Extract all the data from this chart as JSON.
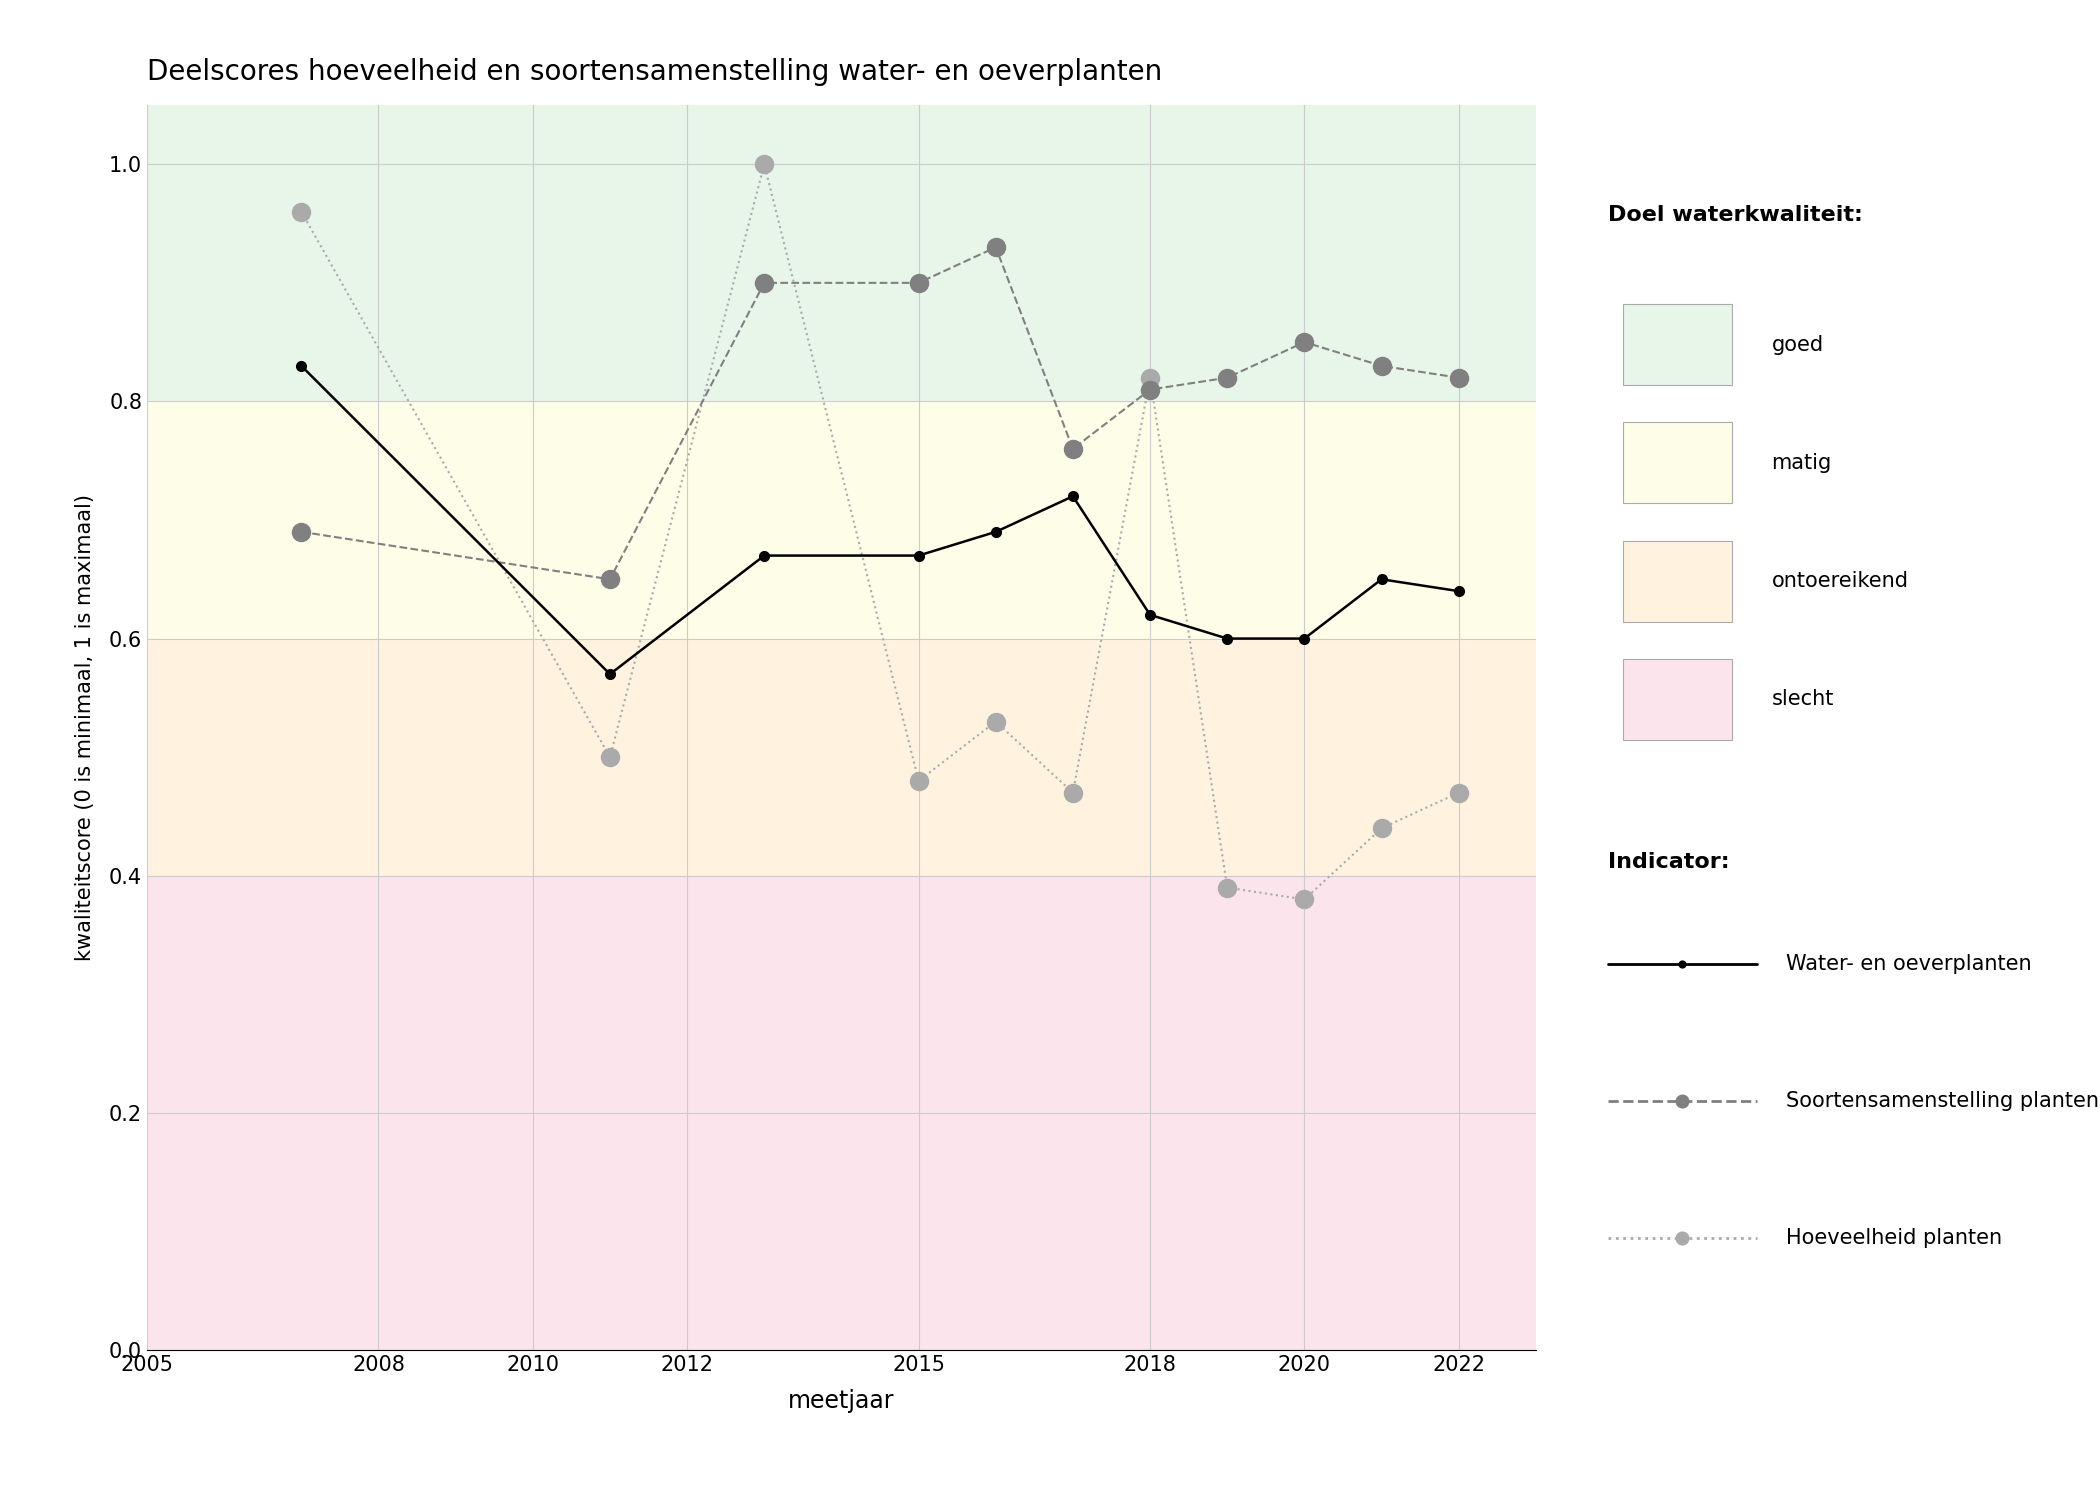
{
  "title": "Deelscores hoeveelheid en soortensamenstelling water- en oeverplanten",
  "xlabel": "meetjaar",
  "ylabel": "kwaliteitscore (0 is minimaal, 1 is maximaal)",
  "xlim": [
    2005,
    2023
  ],
  "ylim": [
    0.0,
    1.05
  ],
  "yticks": [
    0.0,
    0.2,
    0.4,
    0.6,
    0.8,
    1.0
  ],
  "xticks": [
    2005,
    2008,
    2010,
    2012,
    2015,
    2018,
    2020,
    2022
  ],
  "line1_label": "Water- en oeverplanten",
  "line1_x": [
    2007,
    2011,
    2013,
    2015,
    2016,
    2017,
    2018,
    2019,
    2020,
    2021,
    2022
  ],
  "line1_y": [
    0.83,
    0.57,
    0.67,
    0.67,
    0.69,
    0.72,
    0.62,
    0.6,
    0.6,
    0.65,
    0.64
  ],
  "line1_color": "#000000",
  "line1_style": "solid",
  "line1_marker": "o",
  "line1_markersize": 7,
  "line1_linewidth": 1.8,
  "line2_label": "Soortensamenstelling planten",
  "line2_x": [
    2007,
    2011,
    2013,
    2015,
    2016,
    2017,
    2018,
    2019,
    2020,
    2021,
    2022
  ],
  "line2_y": [
    0.69,
    0.65,
    0.9,
    0.9,
    0.93,
    0.76,
    0.81,
    0.82,
    0.85,
    0.83,
    0.82
  ],
  "line2_color": "#808080",
  "line2_style": "--",
  "line2_marker": "o",
  "line2_markersize": 13,
  "line2_linewidth": 1.5,
  "line3_label": "Hoeveelheid planten",
  "line3_x": [
    2007,
    2011,
    2013,
    2015,
    2016,
    2017,
    2018,
    2019,
    2020,
    2021,
    2022
  ],
  "line3_y": [
    0.96,
    0.5,
    1.0,
    0.48,
    0.53,
    0.47,
    0.82,
    0.39,
    0.38,
    0.44,
    0.47
  ],
  "line3_color": "#aaaaaa",
  "line3_style": ":",
  "line3_marker": "o",
  "line3_markersize": 13,
  "line3_linewidth": 1.5,
  "bg_colors": {
    "goed": "#e8f5e9",
    "matig": "#fefde7",
    "ontoereikend": "#fff3e0",
    "slecht": "#fce4ec"
  },
  "legend_title_doel": "Doel waterkwaliteit:",
  "legend_title_indicator": "Indicator:",
  "background_color": "#ffffff",
  "grid_color": "#cccccc"
}
